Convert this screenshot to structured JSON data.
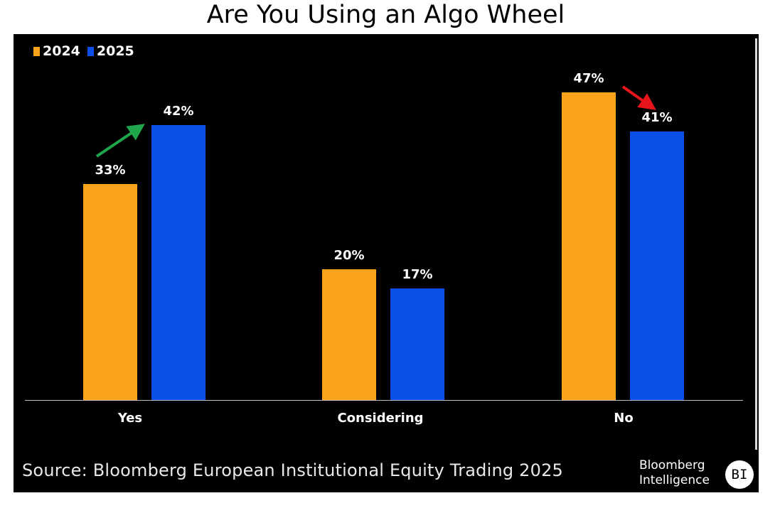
{
  "title": "Are You Using an Algo Wheel",
  "legend": [
    {
      "label": "2024",
      "color": "#FBA31B"
    },
    {
      "label": "2025",
      "color": "#0B4FE8"
    }
  ],
  "source": "Source: Bloomberg European Institutional Equity Trading 2025",
  "brand": {
    "line1": "Bloomberg",
    "line2": "Intelligence",
    "badge": "BI"
  },
  "arrows": [
    {
      "name": "increase-arrow",
      "color": "#1FA64A",
      "from_category": "Yes"
    },
    {
      "name": "decrease-arrow",
      "color": "#E8141B",
      "from_category": "No"
    }
  ],
  "chart_data": {
    "type": "bar",
    "title": "Are You Using an Algo Wheel",
    "categories": [
      "Yes",
      "Considering",
      "No"
    ],
    "series": [
      {
        "name": "2024",
        "color": "#FBA31B",
        "values": [
          33,
          20,
          47
        ],
        "labels": [
          "33%",
          "20%",
          "47%"
        ]
      },
      {
        "name": "2025",
        "color": "#0B4FE8",
        "values": [
          42,
          17,
          41
        ],
        "labels": [
          "42%",
          "17%",
          "41%"
        ]
      }
    ],
    "xlabel": "",
    "ylabel": "",
    "unit": "%",
    "ylim": [
      0,
      50
    ],
    "grid": false,
    "legend_position": "top-left",
    "annotations": [
      "green up arrow Yes 2024→2025",
      "red down arrow No 2024→2025"
    ],
    "source": "Source: Bloomberg European Institutional Equity Trading 2025"
  }
}
